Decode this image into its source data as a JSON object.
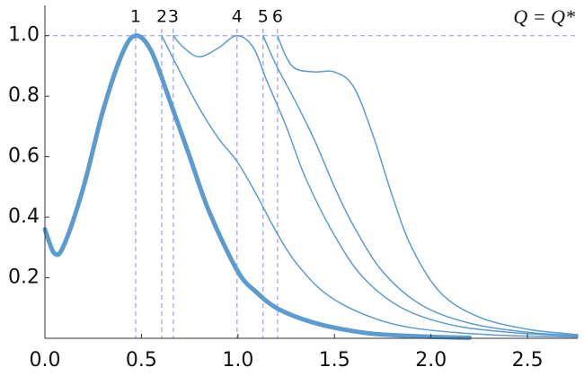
{
  "chart_data": {
    "type": "line",
    "annotation": "Q = Q*",
    "xlim": [
      0,
      2.76
    ],
    "ylim": [
      0,
      1.1
    ],
    "xticks": [
      {
        "value": 0,
        "label": "0.0"
      },
      {
        "value": 0.5,
        "label": "0.5"
      },
      {
        "value": 1,
        "label": "1.0"
      },
      {
        "value": 1.5,
        "label": "1.5"
      },
      {
        "value": 2,
        "label": "2.0"
      },
      {
        "value": 2.5,
        "label": "2.5"
      }
    ],
    "yticks": [
      0.2,
      0.4,
      0.6,
      0.8,
      {
        "value": 1,
        "label": "1.0"
      }
    ],
    "reference_line": 1,
    "reference_color": "#9ea6ee",
    "markers": [
      {
        "label": "1",
        "x": 0.47
      },
      {
        "label": "2",
        "x": 0.605
      },
      {
        "label": "3",
        "x": 0.665
      },
      {
        "label": "4",
        "x": 0.995
      },
      {
        "label": "5",
        "x": 1.13
      },
      {
        "label": "6",
        "x": 1.205
      }
    ],
    "series": [
      {
        "color": "#5b9bd0",
        "width": 5,
        "x": [
          0,
          0.05,
          0.1,
          0.2,
          0.3,
          0.4,
          0.47,
          0.55,
          0.65,
          0.75,
          0.85,
          1.0,
          1.1,
          1.2,
          1.35,
          1.5,
          1.7,
          2.0,
          2.2
        ],
        "values": [
          0.36,
          0.28,
          0.31,
          0.5,
          0.75,
          0.94,
          1.0,
          0.95,
          0.78,
          0.6,
          0.42,
          0.22,
          0.15,
          0.1,
          0.06,
          0.035,
          0.015,
          0.005,
          0.002
        ]
      },
      {
        "color": "#5b9bd0",
        "width": 1.5,
        "x": [
          0.605,
          0.7,
          0.8,
          0.9,
          1.0,
          1.1,
          1.2,
          1.3,
          1.45,
          1.65,
          1.9,
          2.3,
          2.76
        ],
        "values": [
          1.0,
          0.88,
          0.76,
          0.66,
          0.58,
          0.47,
          0.35,
          0.25,
          0.15,
          0.08,
          0.035,
          0.012,
          0.004
        ]
      },
      {
        "color": "#5b9bd0",
        "width": 1.5,
        "x": [
          0.665,
          0.72,
          0.8,
          0.9,
          0.995,
          1.08,
          1.15,
          1.25,
          1.35,
          1.5,
          1.65,
          1.85,
          2.1,
          2.4,
          2.76
        ],
        "values": [
          1.0,
          0.96,
          0.93,
          0.96,
          1.0,
          0.96,
          0.85,
          0.7,
          0.53,
          0.34,
          0.2,
          0.1,
          0.045,
          0.02,
          0.007
        ]
      },
      {
        "color": "#5b9bd0",
        "width": 1.5,
        "x": [
          1.13,
          1.2,
          1.3,
          1.4,
          1.5,
          1.6,
          1.75,
          1.95,
          2.2,
          2.5,
          2.76
        ],
        "values": [
          1.0,
          0.9,
          0.78,
          0.65,
          0.5,
          0.37,
          0.22,
          0.11,
          0.05,
          0.02,
          0.009
        ]
      },
      {
        "color": "#5b9bd0",
        "width": 1.5,
        "x": [
          1.205,
          1.25,
          1.3,
          1.4,
          1.5,
          1.6,
          1.7,
          1.8,
          1.9,
          2.05,
          2.25,
          2.5,
          2.76
        ],
        "values": [
          1.0,
          0.93,
          0.89,
          0.88,
          0.88,
          0.83,
          0.67,
          0.47,
          0.3,
          0.15,
          0.07,
          0.03,
          0.012
        ]
      }
    ]
  }
}
